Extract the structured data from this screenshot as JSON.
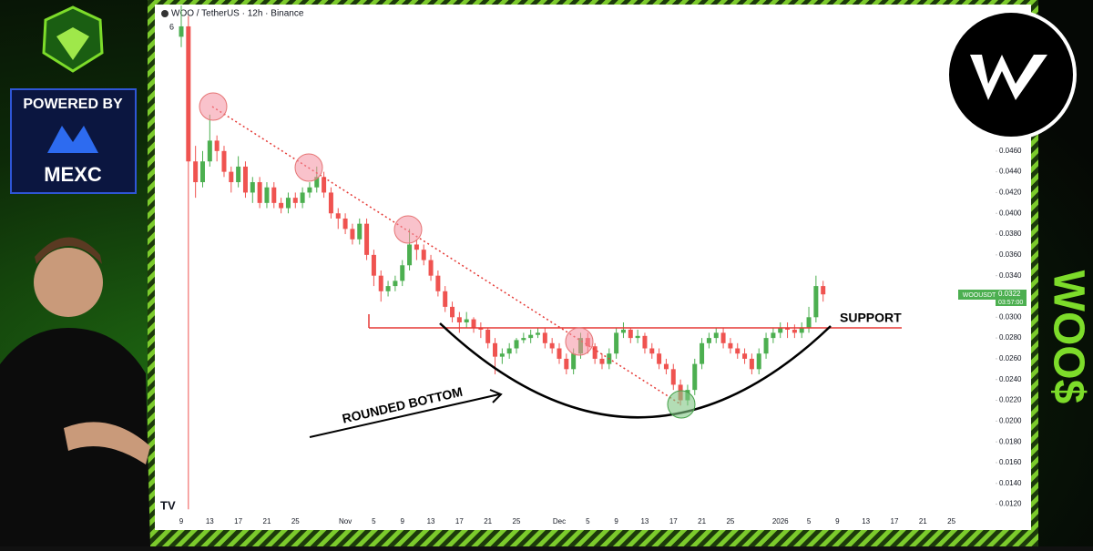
{
  "header": {
    "symbol": "WOO / TetherUS · 12h · Binance",
    "indicator_count": "6"
  },
  "branding": {
    "powered_by": "POWERED BY",
    "exchange": "MEXC",
    "ticker_tag": "WOO$"
  },
  "price_label": {
    "symbol": "WOOUSDT",
    "price": "0.0322",
    "countdown": "03:57:00"
  },
  "annotations": {
    "support": "SUPPORT",
    "pattern": "ROUNDED BOTTOM"
  },
  "chart_data": {
    "type": "candlestick",
    "up_color": "#4caf50",
    "down_color": "#ef5350",
    "grid": false,
    "categories": [
      "9",
      null,
      null,
      null,
      "13",
      null,
      null,
      null,
      "17",
      null,
      null,
      null,
      "21",
      null,
      null,
      null,
      "25",
      null,
      null,
      null,
      null,
      null,
      null,
      "Nov",
      null,
      null,
      null,
      "5",
      null,
      null,
      null,
      "9",
      null,
      null,
      null,
      "13",
      null,
      null,
      null,
      "17",
      null,
      null,
      null,
      "21",
      null,
      null,
      null,
      "25",
      null,
      null,
      null,
      null,
      null,
      "Dec",
      null,
      null,
      null,
      "5",
      null,
      null,
      null,
      "9",
      null,
      null,
      null,
      "13",
      null,
      null,
      null,
      "17",
      null,
      null,
      null,
      "21",
      null,
      null,
      null,
      "25",
      null,
      null,
      null,
      null,
      null,
      null,
      "2026",
      null,
      null,
      null,
      "5",
      null,
      null,
      null,
      "9",
      null,
      null,
      null,
      "13",
      null,
      null,
      null,
      "17",
      null,
      null,
      null,
      "21",
      null,
      null,
      null,
      "25"
    ],
    "open": [
      0.057,
      0.058,
      0.045,
      0.043,
      0.045,
      0.047,
      0.046,
      0.044,
      0.043,
      0.0445,
      0.042,
      0.043,
      0.041,
      0.0425,
      0.041,
      0.0405,
      0.0415,
      0.041,
      0.042,
      0.0425,
      0.0435,
      0.042,
      0.04,
      0.0395,
      0.0385,
      0.0375,
      0.039,
      0.036,
      0.034,
      0.0325,
      0.033,
      0.0335,
      0.035,
      0.037,
      0.0365,
      0.0355,
      0.034,
      0.0325,
      0.031,
      0.03,
      0.0295,
      0.0298,
      0.029,
      0.0288,
      0.0275,
      0.0262,
      0.0265,
      0.027,
      0.0278,
      0.028,
      0.0283,
      0.0285,
      0.0275,
      0.027,
      0.026,
      0.025,
      0.0265,
      0.028,
      0.0272,
      0.026,
      0.0255,
      0.0265,
      0.0285,
      0.0288,
      0.028,
      0.0282,
      0.027,
      0.0265,
      0.0255,
      0.025,
      0.0235,
      0.022,
      0.023,
      0.0255,
      0.0275,
      0.028,
      0.0285,
      0.0275,
      0.027,
      0.0265,
      0.026,
      0.025,
      0.0265,
      0.028,
      0.0285,
      0.029,
      0.0288,
      0.0285,
      0.029,
      0.03,
      0.033,
      null,
      null,
      null,
      null,
      null,
      null,
      null,
      null,
      null,
      null,
      null,
      null,
      null,
      null,
      null,
      null,
      null,
      null
    ],
    "high": [
      0.06,
      0.059,
      0.0465,
      0.046,
      0.0495,
      0.0475,
      0.0465,
      0.0445,
      0.0455,
      0.045,
      0.0435,
      0.0435,
      0.043,
      0.043,
      0.0415,
      0.042,
      0.042,
      0.0425,
      0.043,
      0.0445,
      0.044,
      0.0425,
      0.0405,
      0.04,
      0.039,
      0.0395,
      0.0395,
      0.0365,
      0.0345,
      0.0335,
      0.034,
      0.0355,
      0.0385,
      0.0375,
      0.037,
      0.036,
      0.0345,
      0.033,
      0.0315,
      0.0305,
      0.0305,
      0.03,
      0.0295,
      0.029,
      0.028,
      0.027,
      0.0275,
      0.028,
      0.0285,
      0.0288,
      0.029,
      0.029,
      0.028,
      0.0275,
      0.0265,
      0.027,
      0.0285,
      0.0285,
      0.0275,
      0.0265,
      0.027,
      0.029,
      0.0295,
      0.029,
      0.0288,
      0.0285,
      0.0275,
      0.027,
      0.026,
      0.0255,
      0.024,
      0.0235,
      0.026,
      0.028,
      0.0285,
      0.029,
      0.029,
      0.028,
      0.0275,
      0.027,
      0.0265,
      0.027,
      0.0285,
      0.029,
      0.0295,
      0.0295,
      0.0293,
      0.0295,
      0.031,
      0.034,
      0.0335,
      null,
      null,
      null,
      null,
      null,
      null,
      null,
      null,
      null,
      null,
      null,
      null,
      null,
      null,
      null,
      null,
      null,
      null
    ],
    "low": [
      0.056,
      0.0115,
      0.0415,
      0.0425,
      0.0445,
      0.045,
      0.0435,
      0.042,
      0.0425,
      0.0415,
      0.041,
      0.0405,
      0.0405,
      0.0405,
      0.04,
      0.04,
      0.0405,
      0.0405,
      0.0415,
      0.042,
      0.0415,
      0.0395,
      0.0385,
      0.038,
      0.037,
      0.037,
      0.0355,
      0.033,
      0.0315,
      0.032,
      0.0325,
      0.033,
      0.0345,
      0.0355,
      0.035,
      0.0335,
      0.032,
      0.0305,
      0.0295,
      0.0285,
      0.029,
      0.0285,
      0.028,
      0.027,
      0.0245,
      0.0255,
      0.026,
      0.0265,
      0.0275,
      0.0275,
      0.028,
      0.027,
      0.0265,
      0.0255,
      0.0245,
      0.0245,
      0.026,
      0.0265,
      0.0255,
      0.025,
      0.025,
      0.026,
      0.028,
      0.0275,
      0.0275,
      0.0265,
      0.026,
      0.025,
      0.0245,
      0.023,
      0.0215,
      0.0215,
      0.0225,
      0.025,
      0.027,
      0.0275,
      0.027,
      0.0265,
      0.026,
      0.0255,
      0.0245,
      0.0245,
      0.026,
      0.0275,
      0.028,
      0.028,
      0.028,
      0.028,
      0.0285,
      0.0295,
      0.0315,
      null,
      null,
      null,
      null,
      null,
      null,
      null,
      null,
      null,
      null,
      null,
      null,
      null,
      null,
      null,
      null,
      null,
      null
    ],
    "close": [
      0.058,
      0.045,
      0.043,
      0.045,
      0.047,
      0.046,
      0.044,
      0.043,
      0.0445,
      0.042,
      0.043,
      0.041,
      0.0425,
      0.041,
      0.0405,
      0.0415,
      0.041,
      0.042,
      0.0425,
      0.0435,
      0.042,
      0.04,
      0.0395,
      0.0385,
      0.0375,
      0.039,
      0.036,
      0.034,
      0.0325,
      0.033,
      0.0335,
      0.035,
      0.037,
      0.0365,
      0.0355,
      0.034,
      0.0325,
      0.031,
      0.03,
      0.0295,
      0.0298,
      0.029,
      0.0288,
      0.0275,
      0.0262,
      0.0265,
      0.027,
      0.0278,
      0.028,
      0.0283,
      0.0285,
      0.0275,
      0.027,
      0.026,
      0.025,
      0.0265,
      0.028,
      0.0272,
      0.026,
      0.0255,
      0.0265,
      0.0285,
      0.0288,
      0.028,
      0.0282,
      0.027,
      0.0265,
      0.0255,
      0.025,
      0.0235,
      0.022,
      0.023,
      0.0255,
      0.0275,
      0.028,
      0.0285,
      0.0275,
      0.027,
      0.0265,
      0.026,
      0.025,
      0.0265,
      0.028,
      0.0285,
      0.029,
      0.0288,
      0.0285,
      0.029,
      0.03,
      0.033,
      0.0322,
      null,
      null,
      null,
      null,
      null,
      null,
      null,
      null,
      null,
      null,
      null,
      null,
      null,
      null,
      null,
      null,
      null,
      null
    ],
    "ylim": [
      0.011,
      0.0601
    ],
    "yticks": [
      {
        "value": 0.046,
        "label": "0.0460"
      },
      {
        "value": 0.044,
        "label": "0.0440"
      },
      {
        "value": 0.042,
        "label": "0.0420"
      },
      {
        "value": 0.04,
        "label": "0.0400"
      },
      {
        "value": 0.038,
        "label": "0.0380"
      },
      {
        "value": 0.036,
        "label": "0.0360"
      },
      {
        "value": 0.034,
        "label": "0.0340"
      },
      {
        "value": 0.032,
        "label": "0.0320"
      },
      {
        "value": 0.03,
        "label": "0.0300"
      },
      {
        "value": 0.028,
        "label": "0.0280"
      },
      {
        "value": 0.026,
        "label": "0.0260"
      },
      {
        "value": 0.024,
        "label": "0.0240"
      },
      {
        "value": 0.022,
        "label": "0.0220"
      },
      {
        "value": 0.02,
        "label": "0.0200"
      },
      {
        "value": 0.018,
        "label": "0.0180"
      },
      {
        "value": 0.016,
        "label": "0.0160"
      },
      {
        "value": 0.014,
        "label": "0.0140"
      },
      {
        "value": 0.012,
        "label": "0.0120"
      }
    ]
  }
}
